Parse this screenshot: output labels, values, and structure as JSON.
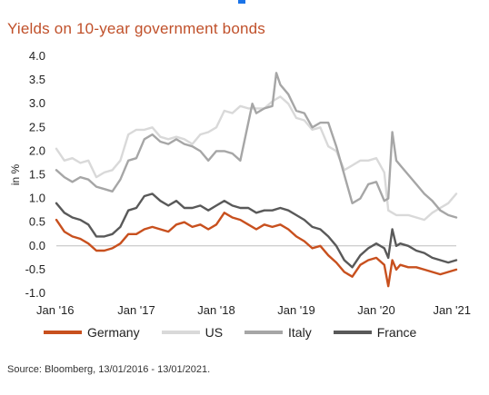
{
  "title": "Yields on 10-year government bonds",
  "title_color": "#c0502a",
  "source": "Source: Bloomberg, 13/01/2016 - 13/01/2021.",
  "chart_data": {
    "type": "line",
    "title": "Yields on 10-year government bonds",
    "xlabel": "",
    "ylabel": "in %",
    "xlim": [
      2016.0,
      2021.0
    ],
    "ylim": [
      -1.0,
      4.0
    ],
    "yticks": [
      -1.0,
      -0.5,
      0.0,
      0.5,
      1.0,
      1.5,
      2.0,
      2.5,
      3.0,
      3.5,
      4.0
    ],
    "ytick_labels": [
      "-1.0",
      "-0.5",
      "0.0",
      "0.5",
      "1.0",
      "1.5",
      "2.0",
      "2.5",
      "3.0",
      "3.5",
      "4.0"
    ],
    "xticks": [
      2016.0,
      2017.0,
      2018.0,
      2019.0,
      2020.0,
      2021.0
    ],
    "xtick_labels": [
      "Jan '16",
      "Jan '17",
      "Jan '18",
      "Jan '19",
      "Jan '20",
      "Jan '21"
    ],
    "grid": false,
    "legend": "bottom",
    "series": [
      {
        "name": "Germany",
        "color": "#c8501e",
        "x": [
          2016.0,
          2016.1,
          2016.2,
          2016.3,
          2016.4,
          2016.5,
          2016.6,
          2016.7,
          2016.8,
          2016.9,
          2017.0,
          2017.1,
          2017.2,
          2017.3,
          2017.4,
          2017.5,
          2017.6,
          2017.7,
          2017.8,
          2017.9,
          2018.0,
          2018.1,
          2018.2,
          2018.3,
          2018.4,
          2018.5,
          2018.6,
          2018.7,
          2018.8,
          2018.9,
          2019.0,
          2019.1,
          2019.2,
          2019.3,
          2019.4,
          2019.5,
          2019.6,
          2019.7,
          2019.8,
          2019.9,
          2020.0,
          2020.1,
          2020.15,
          2020.2,
          2020.25,
          2020.3,
          2020.4,
          2020.5,
          2020.6,
          2020.7,
          2020.8,
          2020.9,
          2021.0
        ],
        "values": [
          0.55,
          0.3,
          0.2,
          0.15,
          0.05,
          -0.1,
          -0.1,
          -0.05,
          0.05,
          0.25,
          0.25,
          0.35,
          0.4,
          0.35,
          0.3,
          0.45,
          0.5,
          0.4,
          0.45,
          0.35,
          0.45,
          0.7,
          0.6,
          0.55,
          0.45,
          0.35,
          0.45,
          0.4,
          0.45,
          0.35,
          0.2,
          0.1,
          -0.05,
          0.0,
          -0.2,
          -0.35,
          -0.55,
          -0.65,
          -0.4,
          -0.3,
          -0.25,
          -0.4,
          -0.85,
          -0.3,
          -0.5,
          -0.4,
          -0.45,
          -0.45,
          -0.5,
          -0.55,
          -0.6,
          -0.55,
          -0.5
        ]
      },
      {
        "name": "US",
        "color": "#d9d9d9",
        "x": [
          2016.0,
          2016.1,
          2016.2,
          2016.3,
          2016.4,
          2016.5,
          2016.6,
          2016.7,
          2016.8,
          2016.9,
          2017.0,
          2017.1,
          2017.2,
          2017.3,
          2017.4,
          2017.5,
          2017.6,
          2017.7,
          2017.8,
          2017.9,
          2018.0,
          2018.1,
          2018.2,
          2018.3,
          2018.4,
          2018.5,
          2018.6,
          2018.7,
          2018.8,
          2018.9,
          2019.0,
          2019.1,
          2019.2,
          2019.3,
          2019.4,
          2019.5,
          2019.6,
          2019.7,
          2019.8,
          2019.9,
          2020.0,
          2020.1,
          2020.15,
          2020.2,
          2020.25,
          2020.3,
          2020.4,
          2020.5,
          2020.6,
          2020.7,
          2020.8,
          2020.9,
          2021.0
        ],
        "values": [
          2.05,
          1.8,
          1.85,
          1.75,
          1.8,
          1.45,
          1.55,
          1.6,
          1.8,
          2.35,
          2.45,
          2.45,
          2.5,
          2.3,
          2.25,
          2.3,
          2.25,
          2.15,
          2.35,
          2.4,
          2.5,
          2.85,
          2.8,
          2.95,
          2.9,
          2.9,
          2.9,
          3.05,
          3.15,
          3.0,
          2.7,
          2.65,
          2.45,
          2.5,
          2.1,
          2.0,
          1.6,
          1.7,
          1.8,
          1.8,
          1.85,
          1.55,
          0.75,
          0.7,
          0.65,
          0.65,
          0.65,
          0.6,
          0.55,
          0.7,
          0.8,
          0.9,
          1.1
        ]
      },
      {
        "name": "Italy",
        "color": "#a6a6a6",
        "x": [
          2016.0,
          2016.1,
          2016.2,
          2016.3,
          2016.4,
          2016.5,
          2016.6,
          2016.7,
          2016.8,
          2016.9,
          2017.0,
          2017.1,
          2017.2,
          2017.3,
          2017.4,
          2017.5,
          2017.6,
          2017.7,
          2017.8,
          2017.9,
          2018.0,
          2018.1,
          2018.2,
          2018.3,
          2018.4,
          2018.45,
          2018.5,
          2018.6,
          2018.7,
          2018.75,
          2018.8,
          2018.9,
          2019.0,
          2019.1,
          2019.2,
          2019.3,
          2019.4,
          2019.5,
          2019.6,
          2019.7,
          2019.8,
          2019.9,
          2020.0,
          2020.1,
          2020.15,
          2020.2,
          2020.25,
          2020.3,
          2020.4,
          2020.5,
          2020.6,
          2020.7,
          2020.8,
          2020.9,
          2021.0
        ],
        "values": [
          1.6,
          1.45,
          1.35,
          1.45,
          1.4,
          1.25,
          1.2,
          1.15,
          1.4,
          1.8,
          1.85,
          2.25,
          2.35,
          2.2,
          2.15,
          2.25,
          2.15,
          2.1,
          2.0,
          1.8,
          2.0,
          2.0,
          1.95,
          1.8,
          2.6,
          3.0,
          2.8,
          2.9,
          2.95,
          3.65,
          3.4,
          3.2,
          2.85,
          2.8,
          2.5,
          2.6,
          2.6,
          2.1,
          1.5,
          0.9,
          1.0,
          1.3,
          1.35,
          0.95,
          1.0,
          2.4,
          1.8,
          1.7,
          1.5,
          1.3,
          1.1,
          0.95,
          0.75,
          0.65,
          0.6
        ]
      },
      {
        "name": "France",
        "color": "#595959",
        "x": [
          2016.0,
          2016.1,
          2016.2,
          2016.3,
          2016.4,
          2016.5,
          2016.6,
          2016.7,
          2016.8,
          2016.9,
          2017.0,
          2017.1,
          2017.2,
          2017.3,
          2017.4,
          2017.5,
          2017.6,
          2017.7,
          2017.8,
          2017.9,
          2018.0,
          2018.1,
          2018.2,
          2018.3,
          2018.4,
          2018.5,
          2018.6,
          2018.7,
          2018.8,
          2018.9,
          2019.0,
          2019.1,
          2019.2,
          2019.3,
          2019.4,
          2019.5,
          2019.6,
          2019.7,
          2019.8,
          2019.9,
          2020.0,
          2020.1,
          2020.15,
          2020.2,
          2020.25,
          2020.3,
          2020.4,
          2020.5,
          2020.6,
          2020.7,
          2020.8,
          2020.9,
          2021.0
        ],
        "values": [
          0.9,
          0.7,
          0.6,
          0.55,
          0.45,
          0.2,
          0.2,
          0.25,
          0.4,
          0.75,
          0.8,
          1.05,
          1.1,
          0.95,
          0.85,
          0.95,
          0.8,
          0.8,
          0.85,
          0.75,
          0.85,
          0.95,
          0.85,
          0.8,
          0.8,
          0.7,
          0.75,
          0.75,
          0.8,
          0.75,
          0.65,
          0.55,
          0.4,
          0.35,
          0.2,
          0.0,
          -0.3,
          -0.45,
          -0.2,
          -0.05,
          0.05,
          -0.05,
          -0.25,
          0.35,
          0.0,
          0.05,
          0.0,
          -0.1,
          -0.15,
          -0.25,
          -0.3,
          -0.35,
          -0.3
        ]
      }
    ]
  }
}
